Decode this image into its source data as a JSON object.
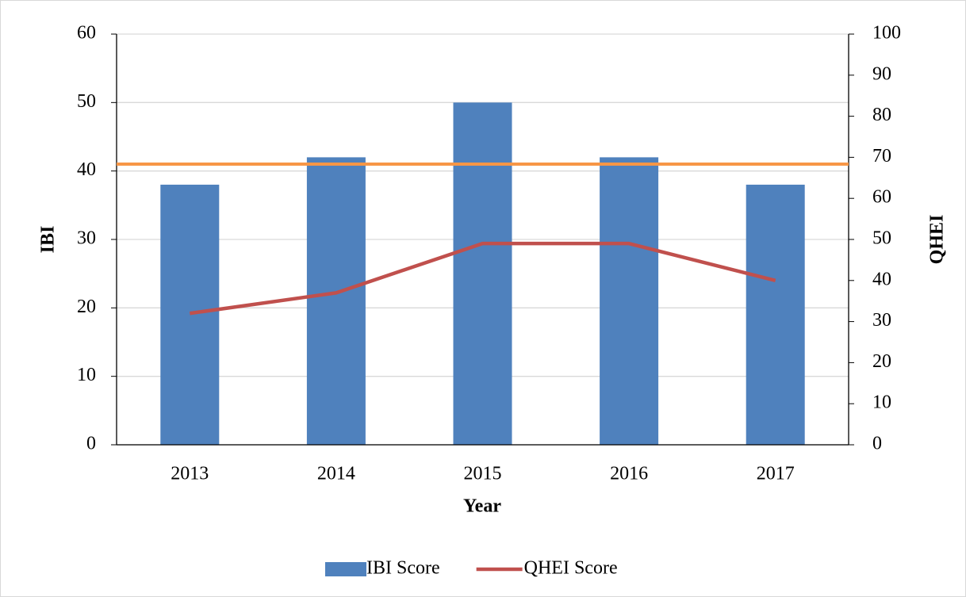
{
  "chart_data": {
    "type": "bar-line",
    "categories": [
      "2013",
      "2014",
      "2015",
      "2016",
      "2017"
    ],
    "series": [
      {
        "name": "IBI Score",
        "type": "bar",
        "color": "#4f81bd",
        "values": [
          38,
          42,
          50,
          42,
          38
        ]
      },
      {
        "name": "QHEI Score",
        "type": "line",
        "axis": "y2",
        "color": "#c0504d",
        "values": [
          32,
          37,
          49,
          49,
          40
        ]
      }
    ],
    "reference_line": {
      "value": 41,
      "color": "#f79646"
    },
    "x_label": "Year",
    "y_label": "IBI",
    "y2_label": "QHEI",
    "ylim": [
      0,
      60
    ],
    "yticks": [
      0,
      10,
      20,
      30,
      40,
      50,
      60
    ],
    "y2lim": [
      0,
      100
    ],
    "y2ticks": [
      0,
      10,
      20,
      30,
      40,
      50,
      60,
      70,
      80,
      90,
      100
    ],
    "grid": true,
    "legend": "bottom"
  }
}
